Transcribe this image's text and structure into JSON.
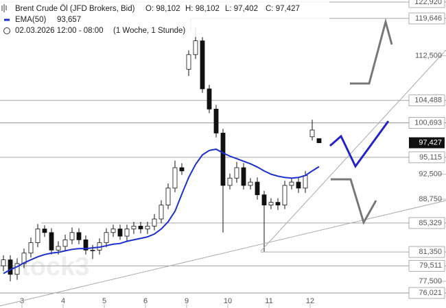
{
  "chart_data": {
    "type": "candlestick",
    "title": "Brent Crude Öl (JFD Brokers, Bid)",
    "ohlc_labels": [
      "O: 98,102",
      "H: 98,102",
      "L: 97,402",
      "C: 97,427"
    ],
    "ema_label": "EMA(50)",
    "ema_value_label": "93,657",
    "timeframe": "02.03.2026 12:00 - 08:00",
    "interval": "(1 Woche, 1 Stunde)",
    "watermark": "stock3",
    "categories": [
      null,
      null,
      null,
      "3",
      null,
      null,
      null,
      null,
      null,
      "4",
      null,
      null,
      null,
      null,
      null,
      "5",
      null,
      null,
      null,
      null,
      null,
      "6",
      null,
      null,
      null,
      null,
      null,
      "9",
      null,
      null,
      null,
      null,
      null,
      "10",
      null,
      null,
      null,
      null,
      null,
      "11",
      null,
      null,
      null,
      null,
      null,
      "12",
      null
    ],
    "open": [
      79.5,
      80.3,
      78.4,
      79.8,
      81.2,
      82.6,
      84.5,
      84.0,
      81.6,
      82.1,
      83.0,
      84.0,
      83.0,
      81.6,
      81.6,
      82.6,
      84.0,
      84.5,
      83.5,
      84.5,
      84.9,
      84.5,
      84.9,
      85.9,
      87.9,
      90.4,
      93.5,
      110.0,
      112.7,
      115.3,
      106.5,
      103.0,
      99.0,
      90.8,
      91.9,
      93.5,
      90.8,
      91.3,
      89.4,
      87.9,
      88.3,
      87.9,
      90.8,
      91.3,
      90.4,
      98.4,
      98.102
    ],
    "high": [
      80.9,
      80.9,
      80.5,
      81.8,
      83.3,
      85.2,
      85.0,
      84.6,
      82.8,
      83.7,
      84.7,
      84.6,
      83.6,
      82.3,
      83.2,
      84.6,
      85.1,
      85.1,
      85.1,
      85.5,
      85.5,
      85.5,
      86.6,
      88.6,
      91.1,
      94.6,
      94.2,
      113.5,
      117.8,
      116.0,
      107.2,
      103.7,
      99.7,
      92.6,
      94.4,
      94.2,
      91.9,
      92.0,
      90.0,
      88.9,
      88.9,
      91.5,
      91.9,
      91.9,
      93.0,
      101.2,
      98.102
    ],
    "low": [
      78.8,
      77.5,
      77.7,
      79.2,
      80.6,
      82.0,
      83.4,
      81.0,
      81.0,
      81.5,
      82.4,
      82.4,
      81.0,
      80.4,
      81.0,
      82.0,
      83.4,
      83.0,
      82.8,
      83.8,
      83.9,
      83.8,
      84.3,
      85.3,
      87.3,
      89.8,
      92.4,
      108.8,
      111.9,
      105.8,
      102.3,
      98.3,
      84.0,
      90.2,
      91.2,
      90.2,
      90.2,
      88.7,
      81.4,
      87.3,
      87.2,
      87.3,
      90.2,
      89.7,
      89.7,
      97.8,
      97.402
    ],
    "close": [
      80.3,
      78.4,
      79.8,
      81.2,
      82.6,
      84.5,
      84.0,
      81.6,
      82.1,
      83.0,
      84.0,
      83.0,
      81.6,
      81.6,
      82.6,
      84.0,
      84.5,
      83.5,
      84.5,
      84.9,
      84.5,
      84.9,
      85.9,
      87.9,
      90.4,
      93.5,
      93.0,
      112.7,
      115.3,
      106.5,
      103.0,
      99.0,
      90.8,
      91.9,
      93.5,
      90.8,
      91.3,
      89.4,
      87.9,
      88.3,
      87.9,
      90.8,
      91.3,
      90.4,
      92.3,
      99.5,
      97.427
    ],
    "ema": {
      "name": "EMA(50)",
      "color": "#1a2fd0",
      "values": [
        78.5,
        79.0,
        79.4,
        79.9,
        80.3,
        80.7,
        81.0,
        81.2,
        81.3,
        81.5,
        81.7,
        81.8,
        81.8,
        81.9,
        82.0,
        82.2,
        82.4,
        82.5,
        82.8,
        83.0,
        83.2,
        83.4,
        83.8,
        84.5,
        85.5,
        87.0,
        89.5,
        92.0,
        94.0,
        95.5,
        96.2,
        96.4,
        95.8,
        95.3,
        94.9,
        94.5,
        94.1,
        93.6,
        93.0,
        92.5,
        92.2,
        92.0,
        91.9,
        92.0,
        92.3,
        93.0,
        93.657
      ]
    },
    "ylim": [
      75.0,
      123.34
    ],
    "log_scale": true,
    "yticks": [
      {
        "value": 112.5,
        "label": "112,500"
      },
      {
        "value": 92.5,
        "label": "92,500"
      },
      {
        "value": 88.75,
        "label": "88,750"
      },
      {
        "value": 77.5,
        "label": "77,500"
      }
    ],
    "levels": [
      {
        "value": 122.92,
        "label": "122,920"
      },
      {
        "value": 119.646,
        "label": "119,646"
      },
      {
        "value": 104.488,
        "label": "104,488"
      },
      {
        "value": 100.693,
        "label": "100,693"
      },
      {
        "value": 95.115,
        "label": "95,115"
      },
      {
        "value": 85.329,
        "label": "85,329"
      },
      {
        "value": 81.35,
        "label": "81,350"
      },
      {
        "value": 79.511,
        "label": "79,511"
      },
      {
        "value": 76.021,
        "label": "76,021"
      }
    ],
    "last_price": {
      "value": 97.427,
      "label": "97,427"
    }
  }
}
